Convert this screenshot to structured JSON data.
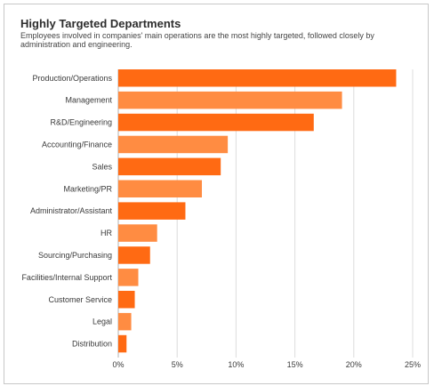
{
  "chart_data": {
    "type": "bar",
    "orientation": "horizontal",
    "title": "Highly Targeted Departments",
    "subtitle": "Employees involved in companies' main operations are the most highly targeted, followed closely by administration and engineering.",
    "categories": [
      "Production/Operations",
      "Management",
      "R&D/Engineering",
      "Accounting/Finance",
      "Sales",
      "Marketing/PR",
      "Administrator/Assistant",
      "HR",
      "Sourcing/Purchasing",
      "Facilities/Internal Support",
      "Customer Service",
      "Legal",
      "Distribution"
    ],
    "values": [
      23.6,
      19.0,
      16.6,
      9.3,
      8.7,
      7.1,
      5.7,
      3.3,
      2.7,
      1.7,
      1.4,
      1.1,
      0.7
    ],
    "xlim": [
      0,
      25
    ],
    "x_ticks": [
      "0%",
      "5%",
      "10%",
      "15%",
      "20%",
      "25%"
    ],
    "grid": "vertical",
    "legend": "none",
    "colors": {
      "dark": "#ff6a13",
      "light": "#ff8c42",
      "grid": "#dcdcdc",
      "axis": "#b0b0b0"
    }
  }
}
